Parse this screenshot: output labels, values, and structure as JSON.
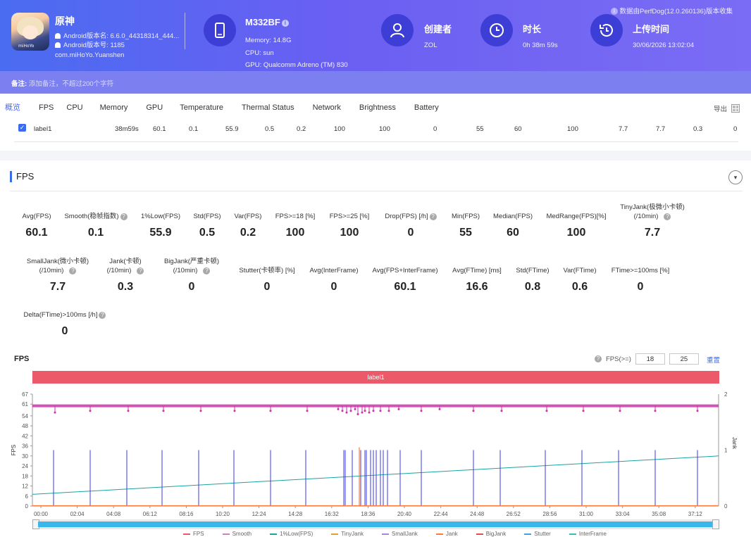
{
  "app": {
    "name": "原神",
    "version_name": "Android版本名: 6.6.0_44318314_444...",
    "version_code": "Android版本号: 1185",
    "package": "com.miHoYo.Yuanshen",
    "icon_text": "miHoYo"
  },
  "device": {
    "model": "M332BF",
    "memory": "Memory: 14.8G",
    "cpu": "CPU: sun",
    "gpu": "GPU: Qualcomm Adreno (TM) 830"
  },
  "creator": {
    "title": "创建者",
    "value": "ZOL"
  },
  "duration": {
    "title": "时长",
    "value": "0h 38m 59s"
  },
  "upload": {
    "title": "上传时间",
    "value": "30/06/2026 13:02:04"
  },
  "collect_note": "数据由PerfDog(12.0.260136)版本收集",
  "remark": {
    "label": "备注:",
    "placeholder": "添加备注，不超过200个字符"
  },
  "tabs": [
    "概览",
    "FPS",
    "CPU",
    "Memory",
    "GPU",
    "Temperature",
    "Thermal Status",
    "Network",
    "Brightness",
    "Battery"
  ],
  "export_label": "导出",
  "summary_row": {
    "label": "label1",
    "cells": [
      "38m59s",
      "60.1",
      "0.1",
      "55.9",
      "0.5",
      "0.2",
      "100",
      "100",
      "0",
      "55",
      "60",
      "100",
      "7.7",
      "7.7",
      "0.3",
      "0"
    ]
  },
  "section_title": "FPS",
  "metrics_row1": [
    {
      "label": "Avg(FPS)",
      "value": "60.1"
    },
    {
      "label": "Smooth(稳帧指数)",
      "value": "0.1",
      "help": true
    },
    {
      "label": "1%Low(FPS)",
      "value": "55.9"
    },
    {
      "label": "Std(FPS)",
      "value": "0.5"
    },
    {
      "label": "Var(FPS)",
      "value": "0.2"
    },
    {
      "label": "FPS>=18 [%]",
      "value": "100"
    },
    {
      "label": "FPS>=25 [%]",
      "value": "100"
    },
    {
      "label": "Drop(FPS) [/h]",
      "value": "0",
      "help": true
    },
    {
      "label": "Min(FPS)",
      "value": "55"
    },
    {
      "label": "Median(FPS)",
      "value": "60"
    },
    {
      "label": "MedRange(FPS)[%]",
      "value": "100"
    },
    {
      "label": "TinyJank(极微小卡顿)",
      "label2": "(/10min)",
      "value": "7.7",
      "help": true
    }
  ],
  "metrics_row2": [
    {
      "label": "SmallJank(微小卡顿)",
      "label2": "(/10min)",
      "value": "7.7",
      "help": true
    },
    {
      "label": "Jank(卡顿)",
      "label2": "(/10min)",
      "value": "0.3",
      "help": true
    },
    {
      "label": "BigJank(严重卡顿)",
      "label2": "(/10min)",
      "value": "0",
      "help": true
    },
    {
      "label": "Stutter(卡顿率) [%]",
      "value": "0"
    },
    {
      "label": "Avg(InterFrame)",
      "value": "0"
    },
    {
      "label": "Avg(FPS+InterFrame)",
      "value": "60.1"
    },
    {
      "label": "Avg(FTime) [ms]",
      "value": "16.6"
    },
    {
      "label": "Std(FTime)",
      "value": "0.8"
    },
    {
      "label": "Var(FTime)",
      "value": "0.6"
    },
    {
      "label": "FTime>=100ms [%]",
      "value": "0"
    }
  ],
  "metrics_row3": [
    {
      "label": "Delta(FTime)>100ms [/h]",
      "value": "0",
      "help": true
    }
  ],
  "chart_header": {
    "title": "FPS",
    "threshold_label": "FPS(>=)",
    "threshold_1": "18",
    "threshold_2": "25",
    "reset_label": "重置",
    "label_bar": "label1"
  },
  "chart_data": {
    "type": "line",
    "ylabel": "FPS",
    "y2label": "Jank",
    "y_ticks": [
      "67",
      "61",
      "54",
      "48",
      "42",
      "36",
      "30",
      "24",
      "18",
      "12",
      "6",
      "0"
    ],
    "y2_ticks": [
      "2",
      "1",
      "0"
    ],
    "x_ticks": [
      "00:00",
      "02:04",
      "04:08",
      "06:12",
      "08:16",
      "10:20",
      "12:24",
      "14:28",
      "16:32",
      "18:36",
      "20:40",
      "22:44",
      "24:48",
      "26:52",
      "28:56",
      "31:00",
      "33:04",
      "35:08",
      "37:12"
    ],
    "ylim": [
      0,
      67
    ],
    "y2lim": [
      0,
      2
    ],
    "series": [
      {
        "name": "FPS",
        "approx_value": 60,
        "min": 55
      },
      {
        "name": "Smooth"
      },
      {
        "name": "1%Low(FPS)",
        "trend": [
          7,
          30
        ]
      },
      {
        "name": "TinyJank"
      },
      {
        "name": "SmallJank",
        "spike_value": 1
      },
      {
        "name": "Jank"
      },
      {
        "name": "BigJank"
      },
      {
        "name": "Stutter"
      },
      {
        "name": "InterFrame"
      }
    ],
    "legend_position": "bottom"
  },
  "legend": [
    "FPS",
    "Smooth",
    "1%Low(FPS)",
    "TinyJank",
    "SmallJank",
    "Jank",
    "BigJank",
    "Stutter",
    "InterFrame"
  ],
  "colors": {
    "fps": "#cc33aa",
    "low1": "#1aa3a3",
    "spike": "#3a3ae8",
    "jank": "#ff7a3a",
    "label_bar": "#ec5a6a"
  }
}
